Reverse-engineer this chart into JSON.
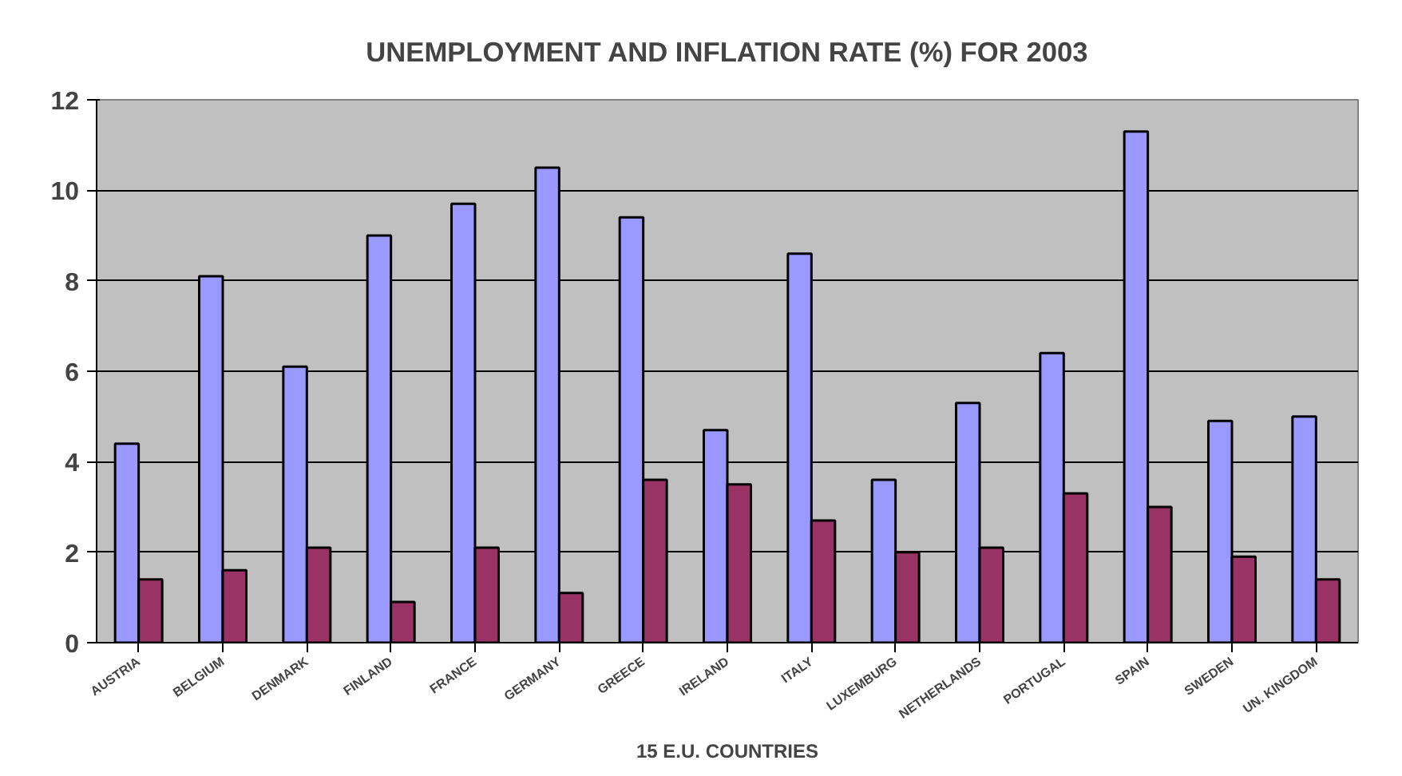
{
  "chart_data": {
    "type": "bar",
    "title": "UNEMPLOYMENT AND INFLATION RATE (%) FOR 2003",
    "xlabel": "15 E.U. COUNTRIES",
    "categories": [
      "AUSTRIA",
      "BELGIUM",
      "DENMARK",
      "FINLAND",
      "FRANCE",
      "GERMANY",
      "GREECE",
      "IRELAND",
      "ITALY",
      "LUXEMBURG",
      "NETHERLANDS",
      "PORTUGAL",
      "SPAIN",
      "SWEDEN",
      "UN. KINGDOM"
    ],
    "series": [
      {
        "color": "#9999ff",
        "values": [
          4.4,
          8.1,
          6.1,
          9.0,
          9.7,
          10.5,
          9.4,
          4.7,
          8.6,
          3.6,
          5.3,
          6.4,
          11.3,
          4.9,
          5.0
        ]
      },
      {
        "color": "#993366",
        "values": [
          1.4,
          1.6,
          2.1,
          0.9,
          2.1,
          1.1,
          3.6,
          3.5,
          2.7,
          2.0,
          2.1,
          3.3,
          3.0,
          1.9,
          1.4
        ]
      }
    ],
    "ylim": [
      0,
      12
    ],
    "yticks": [
      0,
      2,
      4,
      6,
      8,
      10,
      12
    ],
    "grid": "y"
  }
}
